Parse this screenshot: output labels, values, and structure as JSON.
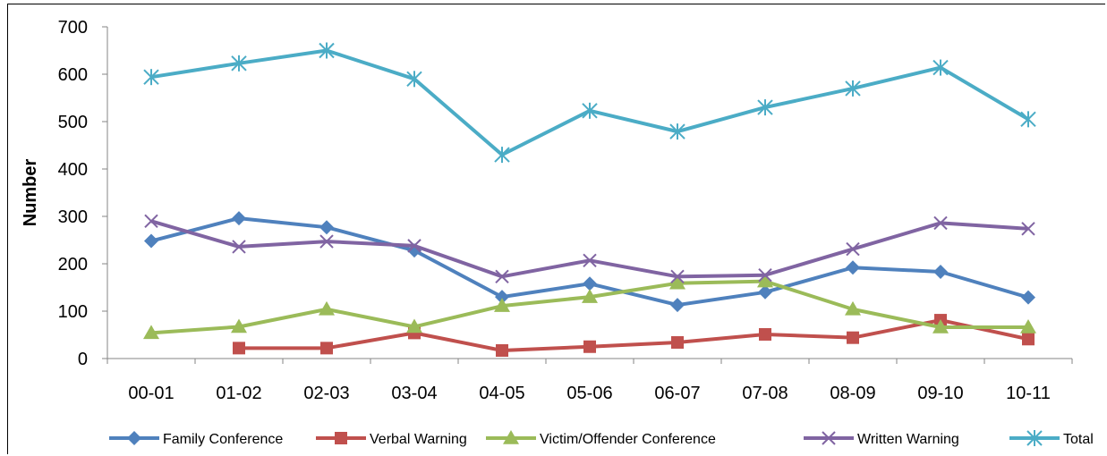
{
  "chart_data": {
    "type": "line",
    "title": "",
    "xlabel": "",
    "ylabel": "Number",
    "ylim": [
      0,
      700
    ],
    "yticks": [
      0,
      100,
      200,
      300,
      400,
      500,
      600,
      700
    ],
    "grid": false,
    "legend_position": "bottom",
    "categories": [
      "00-01",
      "01-02",
      "02-03",
      "03-04",
      "04-05",
      "05-06",
      "06-07",
      "07-08",
      "08-09",
      "09-10",
      "10-11"
    ],
    "series": [
      {
        "name": "Family Conference",
        "color": "#4F81BD",
        "marker": "diamond",
        "values": [
          248,
          296,
          277,
          228,
          130,
          158,
          113,
          140,
          192,
          183,
          129
        ]
      },
      {
        "name": "Verbal Warning",
        "color": "#C0504D",
        "marker": "square",
        "values": [
          null,
          22,
          22,
          54,
          17,
          25,
          34,
          51,
          44,
          81,
          41
        ]
      },
      {
        "name": "Victim/Offender Conference",
        "color": "#9BBB59",
        "marker": "triangle",
        "values": [
          54,
          67,
          104,
          67,
          111,
          130,
          159,
          163,
          104,
          66,
          66
        ]
      },
      {
        "name": "Written Warning",
        "color": "#8064A2",
        "marker": "x",
        "values": [
          290,
          236,
          247,
          238,
          173,
          207,
          173,
          176,
          231,
          286,
          274
        ]
      },
      {
        "name": "Total",
        "color": "#4BACC6",
        "marker": "star",
        "values": [
          594,
          623,
          650,
          590,
          430,
          523,
          479,
          530,
          570,
          614,
          505
        ]
      }
    ]
  }
}
